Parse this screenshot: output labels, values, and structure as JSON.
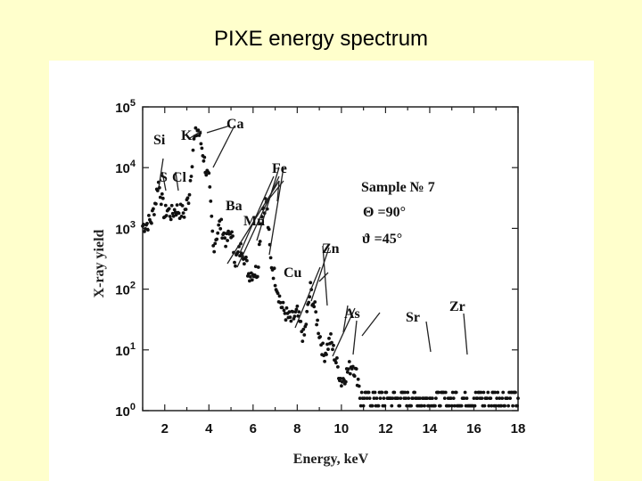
{
  "slide": {
    "title": "PIXE energy spectrum",
    "background": "#ffffcc"
  },
  "chart_data": {
    "type": "scatter",
    "title": "",
    "xlabel": "Energy, keV",
    "ylabel": "X-ray yield",
    "xlim": [
      1,
      18
    ],
    "ylim": [
      1,
      100000
    ],
    "yscale": "log",
    "grid": false,
    "x_ticks": [
      "2",
      "4",
      "6",
      "8",
      "10",
      "12",
      "14",
      "16",
      "18"
    ],
    "y_ticks": [
      {
        "base": "10",
        "exp": "0"
      },
      {
        "base": "10",
        "exp": "1"
      },
      {
        "base": "10",
        "exp": "2"
      },
      {
        "base": "10",
        "exp": "3"
      },
      {
        "base": "10",
        "exp": "4"
      },
      {
        "base": "10",
        "exp": "5"
      }
    ],
    "annotation_lines": [
      "Sample № 7",
      "Θ =90°",
      "ϑ =45°"
    ],
    "element_labels": [
      "Si",
      "S",
      "Cl",
      "K",
      "Ca",
      "Fe",
      "Ba",
      "Mn",
      "Cu",
      "Zn",
      "As",
      "Sr",
      "Zr"
    ],
    "anchors": [
      [
        1.0,
        1100
      ],
      [
        1.2,
        1200
      ],
      [
        1.4,
        1400
      ],
      [
        1.6,
        3000
      ],
      [
        1.7,
        6000
      ],
      [
        1.8,
        4000
      ],
      [
        2.0,
        1600
      ],
      [
        2.1,
        2100
      ],
      [
        2.3,
        1700
      ],
      [
        2.5,
        2100
      ],
      [
        2.7,
        1900
      ],
      [
        2.9,
        1800
      ],
      [
        3.1,
        3500
      ],
      [
        3.3,
        25000
      ],
      [
        3.5,
        45000
      ],
      [
        3.7,
        20000
      ],
      [
        3.9,
        8000
      ],
      [
        4.0,
        6000
      ],
      [
        4.2,
        500
      ],
      [
        4.5,
        1200
      ],
      [
        4.8,
        600
      ],
      [
        5.0,
        900
      ],
      [
        5.2,
        300
      ],
      [
        5.5,
        500
      ],
      [
        5.8,
        180
      ],
      [
        6.2,
        200
      ],
      [
        6.4,
        2000
      ],
      [
        6.6,
        2800
      ],
      [
        6.8,
        300
      ],
      [
        7.0,
        150
      ],
      [
        7.3,
        50
      ],
      [
        7.7,
        30
      ],
      [
        8.0,
        40
      ],
      [
        8.3,
        15
      ],
      [
        8.6,
        100
      ],
      [
        8.9,
        30
      ],
      [
        9.2,
        8
      ],
      [
        9.5,
        15
      ],
      [
        10.0,
        3
      ],
      [
        10.5,
        6
      ],
      [
        11.0,
        1.8
      ],
      [
        12.0,
        1.6
      ],
      [
        13.0,
        2
      ],
      [
        14.0,
        4
      ],
      [
        14.5,
        1.6
      ],
      [
        15.0,
        1.8
      ],
      [
        15.8,
        6
      ],
      [
        16.5,
        1.8
      ],
      [
        18.0,
        1.6
      ]
    ]
  }
}
